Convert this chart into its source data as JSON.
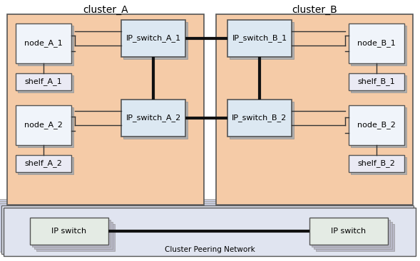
{
  "title_A": "cluster_A",
  "title_B": "cluster_B",
  "cluster_bg": "#f5cba7",
  "cluster_border": "#555555",
  "node_fill_top": "#e8f0f8",
  "node_fill_bot": "#ffffff",
  "node_border": "#555555",
  "switch_fill_top": "#c8daea",
  "switch_fill_bot": "#e8f0f8",
  "switch_border": "#555555",
  "shelf_fill_top": "#d8d8e8",
  "shelf_fill_bot": "#f0f0f8",
  "shelf_border": "#555555",
  "peering_bg": "#e0e4f0",
  "peering_border": "#555555",
  "peering_shadow": "#c8cce0",
  "ips_fill_top": "#d0dcd0",
  "ips_fill_bot": "#f0f4f0",
  "ips_border": "#555555",
  "arrow_color": "#111111",
  "line_color": "#333333",
  "text_color": "#000000",
  "title_fontsize": 10,
  "label_fontsize": 8,
  "peering_label": "Cluster Peering Network",
  "nodes_A": [
    "node_A_1",
    "node_A_2"
  ],
  "shelves_A": [
    "shelf_A_1",
    "shelf_A_2"
  ],
  "switches_A": [
    "IP_switch_A_1",
    "IP_switch_A_2"
  ],
  "nodes_B": [
    "node_B_1",
    "node_B_2"
  ],
  "shelves_B": [
    "shelf_B_1",
    "shelf_B_2"
  ],
  "switches_B": [
    "IP_switch_B_1",
    "IP_switch_B_2"
  ],
  "ip_switches": [
    "IP switch",
    "IP switch"
  ]
}
